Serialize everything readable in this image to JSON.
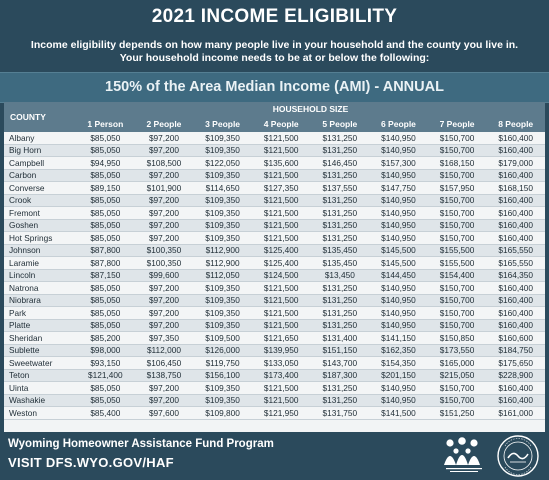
{
  "title": "2021 INCOME ELIGIBILITY",
  "intro": {
    "line1": "Income eligibility depends on how many people live in your household and the county you live in.",
    "line2": "Your household income needs to be at or below the following:"
  },
  "band_title": "150% of the Area Median Income (AMI) - ANNUAL",
  "table": {
    "county_header": "COUNTY",
    "group_header": "HOUSEHOLD SIZE",
    "columns": [
      "1 Person",
      "2 People",
      "3 People",
      "4 People",
      "5 People",
      "6 People",
      "7 People",
      "8 People"
    ],
    "rows": [
      {
        "county": "Albany",
        "values": [
          "$85,050",
          "$97,200",
          "$109,350",
          "$121,500",
          "$131,250",
          "$140,950",
          "$150,700",
          "$160,400"
        ]
      },
      {
        "county": "Big Horn",
        "values": [
          "$85,050",
          "$97,200",
          "$109,350",
          "$121,500",
          "$131,250",
          "$140,950",
          "$150,700",
          "$160,400"
        ]
      },
      {
        "county": "Campbell",
        "values": [
          "$94,950",
          "$108,500",
          "$122,050",
          "$135,600",
          "$146,450",
          "$157,300",
          "$168,150",
          "$179,000"
        ]
      },
      {
        "county": "Carbon",
        "values": [
          "$85,050",
          "$97,200",
          "$109,350",
          "$121,500",
          "$131,250",
          "$140,950",
          "$150,700",
          "$160,400"
        ]
      },
      {
        "county": "Converse",
        "values": [
          "$89,150",
          "$101,900",
          "$114,650",
          "$127,350",
          "$137,550",
          "$147,750",
          "$157,950",
          "$168,150"
        ]
      },
      {
        "county": "Crook",
        "values": [
          "$85,050",
          "$97,200",
          "$109,350",
          "$121,500",
          "$131,250",
          "$140,950",
          "$150,700",
          "$160,400"
        ]
      },
      {
        "county": "Fremont",
        "values": [
          "$85,050",
          "$97,200",
          "$109,350",
          "$121,500",
          "$131,250",
          "$140,950",
          "$150,700",
          "$160,400"
        ]
      },
      {
        "county": "Goshen",
        "values": [
          "$85,050",
          "$97,200",
          "$109,350",
          "$121,500",
          "$131,250",
          "$140,950",
          "$150,700",
          "$160,400"
        ]
      },
      {
        "county": "Hot Springs",
        "values": [
          "$85,050",
          "$97,200",
          "$109,350",
          "$121,500",
          "$131,250",
          "$140,950",
          "$150,700",
          "$160,400"
        ]
      },
      {
        "county": "Johnson",
        "values": [
          "$87,800",
          "$100,350",
          "$112,900",
          "$125,400",
          "$135,450",
          "$145,500",
          "$155,500",
          "$165,550"
        ]
      },
      {
        "county": "Laramie",
        "values": [
          "$87,800",
          "$100,350",
          "$112,900",
          "$125,400",
          "$135,450",
          "$145,500",
          "$155,500",
          "$165,550"
        ]
      },
      {
        "county": "Lincoln",
        "values": [
          "$87,150",
          "$99,600",
          "$112,050",
          "$124,500",
          "$13,450",
          "$144,450",
          "$154,400",
          "$164,350"
        ]
      },
      {
        "county": "Natrona",
        "values": [
          "$85,050",
          "$97,200",
          "$109,350",
          "$121,500",
          "$131,250",
          "$140,950",
          "$150,700",
          "$160,400"
        ]
      },
      {
        "county": "Niobrara",
        "values": [
          "$85,050",
          "$97,200",
          "$109,350",
          "$121,500",
          "$131,250",
          "$140,950",
          "$150,700",
          "$160,400"
        ]
      },
      {
        "county": "Park",
        "values": [
          "$85,050",
          "$97,200",
          "$109,350",
          "$121,500",
          "$131,250",
          "$140,950",
          "$150,700",
          "$160,400"
        ]
      },
      {
        "county": "Platte",
        "values": [
          "$85,050",
          "$97,200",
          "$109,350",
          "$121,500",
          "$131,250",
          "$140,950",
          "$150,700",
          "$160,400"
        ]
      },
      {
        "county": "Sheridan",
        "values": [
          "$85,200",
          "$97,350",
          "$109,500",
          "$121,650",
          "$131,400",
          "$141,150",
          "$150,850",
          "$160,600"
        ]
      },
      {
        "county": "Sublette",
        "values": [
          "$98,000",
          "$112,000",
          "$126,000",
          "$139,950",
          "$151,150",
          "$162,350",
          "$173,550",
          "$184,750"
        ]
      },
      {
        "county": "Sweetwater",
        "values": [
          "$93,150",
          "$106,450",
          "$119,750",
          "$133,050",
          "$143,700",
          "$154,350",
          "$165,000",
          "$175,650"
        ]
      },
      {
        "county": "Teton",
        "values": [
          "$121,400",
          "$138,750",
          "$156,100",
          "$173,400",
          "$187,300",
          "$201,150",
          "$215,050",
          "$228,900"
        ]
      },
      {
        "county": "Uinta",
        "values": [
          "$85,050",
          "$97,200",
          "$109,350",
          "$121,500",
          "$131,250",
          "$140,950",
          "$150,700",
          "$160,400"
        ]
      },
      {
        "county": "Washakie",
        "values": [
          "$85,050",
          "$97,200",
          "$109,350",
          "$121,500",
          "$131,250",
          "$140,950",
          "$150,700",
          "$160,400"
        ]
      },
      {
        "county": "Weston",
        "values": [
          "$85,400",
          "$97,600",
          "$109,800",
          "$121,950",
          "$131,750",
          "$141,500",
          "$151,250",
          "$161,000"
        ]
      }
    ]
  },
  "footer": {
    "program": "Wyoming Homeowner Assistance Fund Program",
    "visit": "VISIT DFS.WYO.GOV/HAF"
  },
  "colors": {
    "background": "#2b4a5c",
    "band": "#3e6a80",
    "table_header": "#5d7b8d"
  },
  "icons": [
    "family-dfs-logo-icon",
    "wyoming-dfs-seal-icon"
  ]
}
